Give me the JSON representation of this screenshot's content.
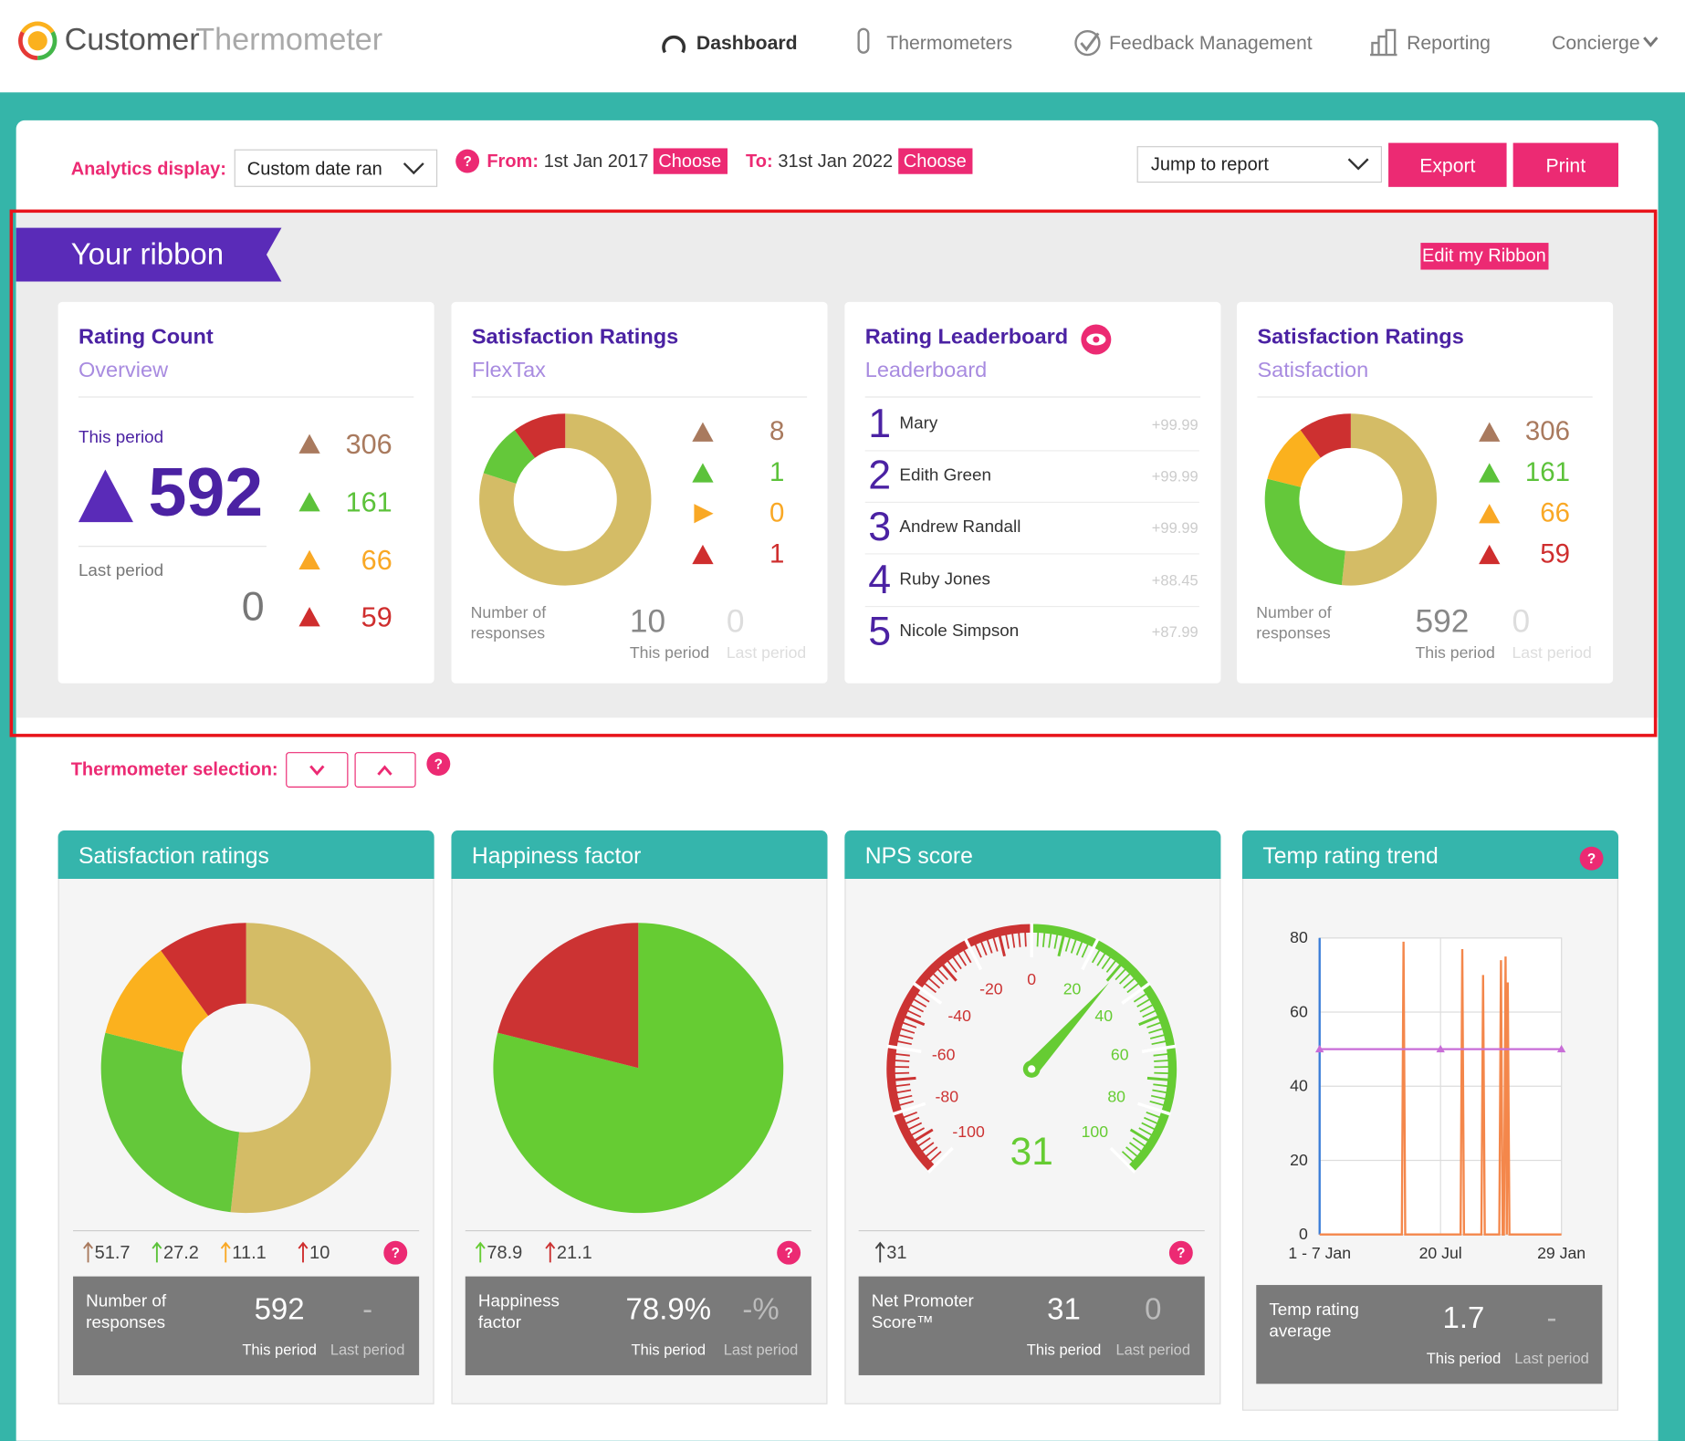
{
  "nav": {
    "brand_a": "Customer",
    "brand_b": "Thermometer",
    "items": [
      "Dashboard",
      "Thermometers",
      "Feedback Management",
      "Reporting",
      "Concierge"
    ]
  },
  "toolbar": {
    "analytics_label": "Analytics display:",
    "analytics_value": "Custom date ran",
    "help": "?",
    "from_label": "From:",
    "from_date": "1st Jan 2017",
    "from_button": "Choose",
    "to_label": "To:",
    "to_date": "31st Jan 2022",
    "to_button": "Choose",
    "jump": "Jump to report",
    "export": "Export",
    "print": "Print"
  },
  "ribbon": {
    "title": "Your ribbon",
    "edit": "Edit my Ribbon",
    "marker_colors": [
      "#a97a5e",
      "#5cc23a",
      "#f9a825",
      "#cf2e2e"
    ],
    "rating_count": {
      "title": "Rating Count",
      "subtitle": "Overview",
      "this_label": "This period",
      "this_value": 592,
      "last_label": "Last period",
      "last_value": 0,
      "breakdown": [
        306,
        161,
        66,
        59
      ]
    },
    "flextax": {
      "title": "Satisfaction Ratings",
      "subtitle": "FlexTax",
      "segments": [
        {
          "value": 8,
          "color": "#d4bc66"
        },
        {
          "value": 1,
          "color": "#64c83a"
        },
        {
          "value": 0,
          "color": "#fbb11e"
        },
        {
          "value": 1,
          "color": "#cd3030"
        }
      ],
      "responses_label": "Number of responses",
      "this_value": 10,
      "this_label": "This period",
      "last_value": 0,
      "last_label": "Last period"
    },
    "leaderboard": {
      "title": "Rating Leaderboard",
      "subtitle": "Leaderboard",
      "rows": [
        {
          "rank": 1,
          "name": "Mary",
          "score": "+99.99"
        },
        {
          "rank": 2,
          "name": "Edith Green",
          "score": "+99.99"
        },
        {
          "rank": 3,
          "name": "Andrew Randall",
          "score": "+99.99"
        },
        {
          "rank": 4,
          "name": "Ruby Jones",
          "score": "+88.45"
        },
        {
          "rank": 5,
          "name": "Nicole Simpson",
          "score": "+87.99"
        }
      ]
    },
    "satisfaction": {
      "title": "Satisfaction Ratings",
      "subtitle": "Satisfaction",
      "segments": [
        {
          "value": 306,
          "color": "#d4bc66"
        },
        {
          "value": 161,
          "color": "#64c83a"
        },
        {
          "value": 66,
          "color": "#fbb11e"
        },
        {
          "value": 59,
          "color": "#cd3030"
        }
      ],
      "responses_label": "Number of responses",
      "this_value": 592,
      "this_label": "This period",
      "last_value": 0,
      "last_label": "Last period"
    }
  },
  "selection": {
    "label": "Thermometer selection:",
    "help": "?"
  },
  "panels": {
    "satisfaction": {
      "title": "Satisfaction ratings",
      "segments": [
        {
          "value": 51.7,
          "color": "#d4bc66"
        },
        {
          "value": 27.2,
          "color": "#64c83a"
        },
        {
          "value": 11.1,
          "color": "#fbb11e"
        },
        {
          "value": 10,
          "color": "#cd3030"
        }
      ],
      "legend_colors": [
        "#a97a5e",
        "#5cc23a",
        "#f9a825",
        "#cf2e2e"
      ],
      "help": "?",
      "summary_label": "Number of responses",
      "this_value": 592,
      "this_label": "This period",
      "last_value": "-",
      "last_label": "Last period"
    },
    "happiness": {
      "title": "Happiness factor",
      "segments": [
        {
          "value": 78.9,
          "color": "#66cc33"
        },
        {
          "value": 21.1,
          "color": "#cc3333"
        }
      ],
      "help": "?",
      "summary_label": "Happiness factor",
      "this_value": "78.9%",
      "this_label": "This period",
      "last_value": "-%",
      "last_label": "Last period"
    },
    "nps": {
      "title": "NPS score",
      "gauge": {
        "min": -100,
        "max": 100,
        "ticks": [
          -100,
          -80,
          -60,
          -40,
          -20,
          0,
          20,
          40,
          60,
          80,
          100
        ],
        "value": 31,
        "negative_color": "#cc3333",
        "positive_color": "#66cc33"
      },
      "change": 31,
      "help": "?",
      "summary_label": "Net Promoter Score™",
      "this_value": 31,
      "this_label": "This period",
      "last_value": 0,
      "last_label": "Last period"
    },
    "trend": {
      "title": "Temp rating trend",
      "help": "?",
      "chart": {
        "type": "line",
        "xlim": [
          0,
          100
        ],
        "xticks": [
          {
            "value": 0,
            "label": "1 - 7 Jan"
          },
          {
            "value": 50,
            "label": "20 Jul"
          },
          {
            "value": 100,
            "label": "29 Jan"
          }
        ],
        "ylim": [
          0,
          80
        ],
        "yticks": [
          0,
          20,
          40,
          60,
          80
        ],
        "grid": true,
        "series": [
          {
            "color": "#f4874b",
            "x": [
              0,
              34,
              34.7,
              35.4,
              58.3,
              59,
              59.7,
              66.9,
              67.6,
              68.3,
              74.3,
              75,
              75.7,
              76.2,
              76.9,
              77.4,
              77.8,
              78.5,
              100
            ],
            "values": [
              0,
              0,
              79,
              0,
              0,
              77,
              0,
              0,
              70,
              0,
              0,
              74,
              0,
              0,
              75,
              0,
              68,
              0,
              0
            ]
          },
          {
            "color": "#c86dd7",
            "x": [
              0,
              50,
              100
            ],
            "values": [
              50,
              50,
              50
            ]
          }
        ]
      },
      "summary_label": "Temp rating average",
      "this_value": 1.7,
      "this_label": "This period",
      "last_value": "-",
      "last_label": "Last period"
    }
  }
}
